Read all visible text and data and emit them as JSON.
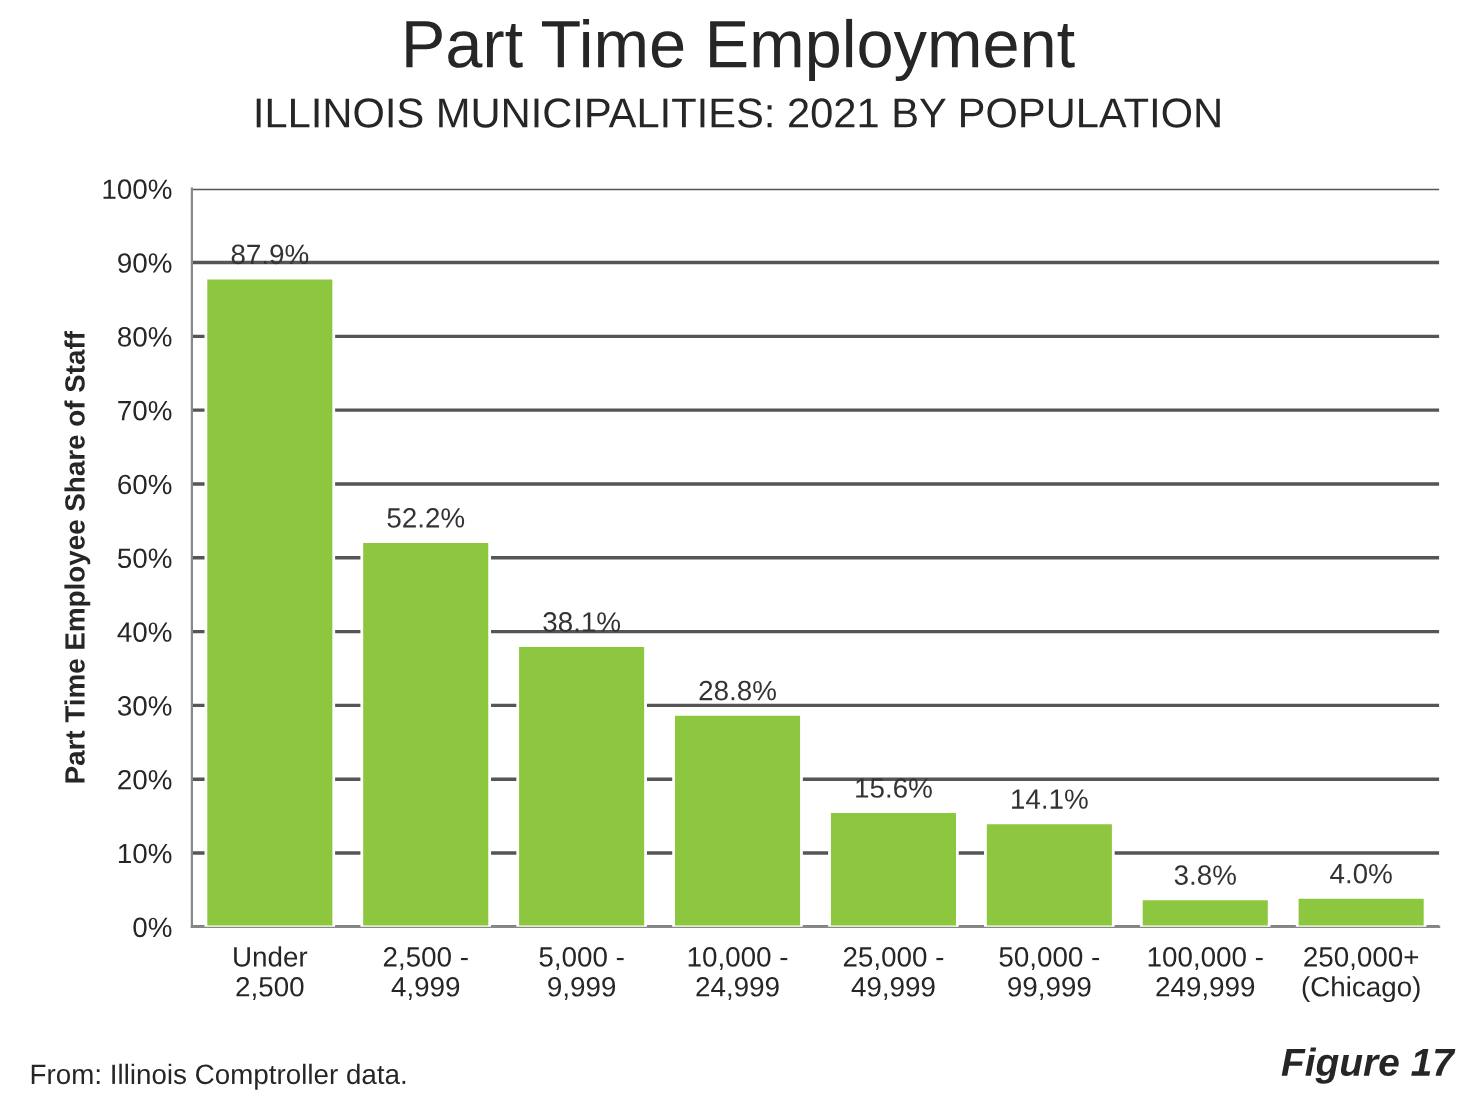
{
  "chart_data": {
    "type": "bar",
    "title": "Part Time Employment",
    "subtitle": "ILLINOIS MUNICIPALITIES: 2021 BY POPULATION",
    "ylabel": "Part Time Employee Share of Staff",
    "categories": [
      "Under\n2,500",
      "2,500 -\n4,999",
      "5,000 -\n9,999",
      "10,000 -\n24,999",
      "25,000 -\n49,999",
      "50,000 -\n99,999",
      "100,000 -\n249,999",
      "250,000+\n(Chicago)"
    ],
    "values": [
      87.9,
      52.2,
      38.1,
      28.8,
      15.6,
      14.1,
      3.8,
      4.0
    ],
    "value_labels": [
      "87.9%",
      "52.2%",
      "38.1%",
      "28.8%",
      "15.6%",
      "14.1%",
      "3.8%",
      "4.0%"
    ],
    "color": "#8dc63f",
    "ylim": [
      0,
      100
    ],
    "yticks": [
      {
        "value": 0,
        "label": "0%"
      },
      {
        "value": 10,
        "label": "10%"
      },
      {
        "value": 20,
        "label": "20%"
      },
      {
        "value": 30,
        "label": "30%"
      },
      {
        "value": 40,
        "label": "40%"
      },
      {
        "value": 50,
        "label": "50%"
      },
      {
        "value": 60,
        "label": "60%"
      },
      {
        "value": 70,
        "label": "70%"
      },
      {
        "value": 80,
        "label": "80%"
      },
      {
        "value": 90,
        "label": "90%"
      },
      {
        "value": 100,
        "label": "100%"
      }
    ],
    "grid": "y",
    "annotations": [
      "From: Illinois Comptroller data.",
      "Figure 17"
    ]
  }
}
